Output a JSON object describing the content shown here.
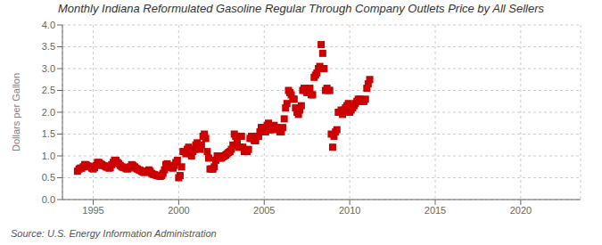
{
  "chart_data": {
    "type": "scatter",
    "title": "Monthly Indiana Reformulated Gasoline Regular Through Company Outlets Price by All Sellers",
    "y_label": "Dollars per Gallon",
    "annotation": "Source: U.S. Energy Information Administration",
    "color": "#CC0000",
    "marker": "square",
    "grid": true,
    "xlim": [
      1993.2,
      2023.5
    ],
    "ylim": [
      0.0,
      4.0
    ],
    "xticks": [
      1995,
      2000,
      2005,
      2010,
      2015,
      2020
    ],
    "yticks": [
      {
        "value": 0.0,
        "label": "0.0"
      },
      0.5,
      {
        "value": 1.0,
        "label": "1.0"
      },
      1.5,
      {
        "value": 2.0,
        "label": "2.0"
      },
      2.5,
      {
        "value": 3.0,
        "label": "3.0"
      },
      3.5,
      {
        "value": 4.0,
        "label": "4.0"
      }
    ],
    "x": [
      1994.08,
      1994.17,
      1994.25,
      1994.33,
      1994.42,
      1994.5,
      1994.58,
      1994.67,
      1994.75,
      1994.83,
      1994.92,
      1995.0,
      1995.08,
      1995.17,
      1995.25,
      1995.33,
      1995.42,
      1995.5,
      1995.58,
      1995.67,
      1995.75,
      1995.83,
      1995.92,
      1996.0,
      1996.08,
      1996.17,
      1996.25,
      1996.33,
      1996.42,
      1996.5,
      1996.58,
      1996.67,
      1996.75,
      1996.83,
      1996.92,
      1997.0,
      1997.08,
      1997.17,
      1997.25,
      1997.33,
      1997.42,
      1997.5,
      1997.58,
      1997.67,
      1997.75,
      1997.83,
      1997.92,
      1998.0,
      1998.08,
      1998.17,
      1998.25,
      1998.33,
      1998.42,
      1998.5,
      1998.58,
      1998.67,
      1998.75,
      1998.83,
      1998.92,
      1999.0,
      1999.08,
      1999.17,
      1999.25,
      1999.33,
      1999.42,
      1999.5,
      1999.58,
      1999.67,
      1999.75,
      1999.83,
      1999.92,
      2000.0,
      2000.08,
      2000.17,
      2000.25,
      2000.33,
      2000.42,
      2000.5,
      2000.58,
      2000.67,
      2000.75,
      2000.83,
      2000.92,
      2001.0,
      2001.08,
      2001.17,
      2001.25,
      2001.33,
      2001.42,
      2001.5,
      2001.58,
      2001.67,
      2001.75,
      2001.83,
      2001.92,
      2002.0,
      2002.08,
      2002.17,
      2002.25,
      2002.33,
      2002.42,
      2002.5,
      2002.58,
      2002.67,
      2002.75,
      2002.83,
      2002.92,
      2003.0,
      2003.08,
      2003.17,
      2003.25,
      2003.33,
      2003.42,
      2003.5,
      2003.58,
      2003.67,
      2003.75,
      2003.83,
      2003.92,
      2004.0,
      2004.08,
      2004.17,
      2004.25,
      2004.33,
      2004.42,
      2004.5,
      2004.58,
      2004.67,
      2004.75,
      2004.83,
      2004.92,
      2005.0,
      2005.08,
      2005.17,
      2005.25,
      2005.33,
      2005.42,
      2005.5,
      2005.58,
      2005.67,
      2005.75,
      2005.83,
      2005.92,
      2006.0,
      2006.08,
      2006.17,
      2006.25,
      2006.33,
      2006.42,
      2006.5,
      2006.58,
      2006.67,
      2006.75,
      2006.83,
      2006.92,
      2007.0,
      2007.08,
      2007.17,
      2007.25,
      2007.33,
      2007.42,
      2007.5,
      2007.58,
      2007.67,
      2007.75,
      2007.83,
      2007.92,
      2008.0,
      2008.08,
      2008.17,
      2008.25,
      2008.33,
      2008.42,
      2008.5,
      2008.58,
      2008.67,
      2008.75,
      2008.83,
      2008.92,
      2009.0,
      2009.08,
      2009.17,
      2009.25,
      2009.33,
      2009.42,
      2009.5,
      2009.58,
      2009.67,
      2009.75,
      2009.83,
      2009.92,
      2010.0,
      2010.08,
      2010.17,
      2010.25,
      2010.33,
      2010.42,
      2010.5,
      2010.58,
      2010.67,
      2010.75,
      2010.83,
      2010.92,
      2011.0,
      2011.08,
      2011.17
    ],
    "values": [
      0.65,
      0.7,
      0.72,
      0.72,
      0.75,
      0.8,
      0.8,
      0.77,
      0.76,
      0.75,
      0.72,
      0.7,
      0.73,
      0.78,
      0.85,
      0.85,
      0.82,
      0.8,
      0.78,
      0.77,
      0.75,
      0.74,
      0.72,
      0.73,
      0.8,
      0.85,
      0.9,
      0.9,
      0.85,
      0.82,
      0.78,
      0.75,
      0.74,
      0.73,
      0.71,
      0.7,
      0.72,
      0.75,
      0.8,
      0.78,
      0.75,
      0.72,
      0.7,
      0.68,
      0.67,
      0.65,
      0.63,
      0.62,
      0.63,
      0.65,
      0.68,
      0.65,
      0.6,
      0.58,
      0.57,
      0.56,
      0.55,
      0.54,
      0.53,
      0.55,
      0.6,
      0.68,
      0.8,
      0.82,
      0.78,
      0.75,
      0.73,
      0.72,
      0.78,
      0.85,
      0.9,
      0.5,
      0.55,
      0.75,
      1.1,
      1.1,
      1.05,
      1.15,
      1.2,
      1.05,
      1.0,
      1.1,
      1.15,
      1.25,
      1.3,
      1.2,
      1.15,
      1.25,
      1.45,
      1.5,
      1.4,
      1.1,
      0.95,
      0.7,
      0.7,
      0.7,
      0.75,
      0.9,
      1.0,
      1.0,
      0.95,
      0.95,
      0.98,
      1.0,
      1.02,
      1.05,
      1.08,
      1.1,
      1.15,
      1.25,
      1.5,
      1.45,
      1.3,
      1.2,
      1.2,
      1.45,
      1.2,
      1.1,
      1.1,
      1.1,
      1.15,
      1.4,
      1.45,
      1.4,
      1.35,
      1.35,
      1.45,
      1.45,
      1.55,
      1.65,
      1.65,
      1.55,
      1.55,
      1.7,
      1.75,
      1.6,
      1.6,
      1.65,
      1.7,
      1.65,
      1.65,
      1.6,
      1.55,
      1.55,
      1.65,
      1.85,
      2.1,
      2.2,
      2.5,
      2.45,
      2.4,
      2.3,
      2.3,
      2.1,
      2.0,
      1.95,
      2.05,
      2.15,
      2.5,
      2.55,
      2.5,
      2.45,
      2.45,
      2.55,
      2.4,
      2.4,
      2.8,
      2.85,
      2.9,
      3.0,
      3.05,
      3.55,
      3.35,
      3.0,
      2.5,
      2.55,
      2.5,
      2.5,
      1.5,
      1.2,
      1.45,
      1.55,
      1.6,
      2.0,
      2.0,
      2.05,
      1.95,
      2.05,
      2.1,
      2.15,
      2.2,
      2.0,
      2.05,
      2.1,
      2.15,
      2.2,
      2.25,
      2.3,
      2.3,
      2.25,
      2.25,
      2.25,
      2.3,
      2.55,
      2.65,
      2.75
    ]
  }
}
